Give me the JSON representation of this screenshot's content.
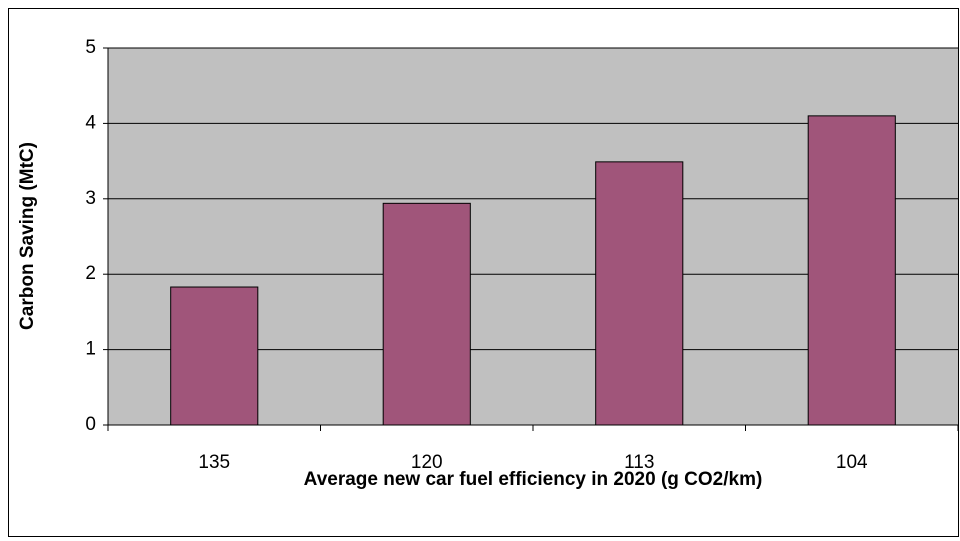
{
  "chart_data": {
    "type": "bar",
    "categories": [
      "135",
      "120",
      "113",
      "104"
    ],
    "values": [
      1.83,
      2.94,
      3.49,
      4.1
    ],
    "color": "#a0557a",
    "xlabel": "Average new car fuel efficiency in 2020 (g CO2/km)",
    "ylabel": "Carbon Saving (MtC)",
    "ylim": [
      0,
      5
    ],
    "yticks": [
      0,
      1,
      2,
      3,
      4,
      5
    ],
    "grid": true
  }
}
